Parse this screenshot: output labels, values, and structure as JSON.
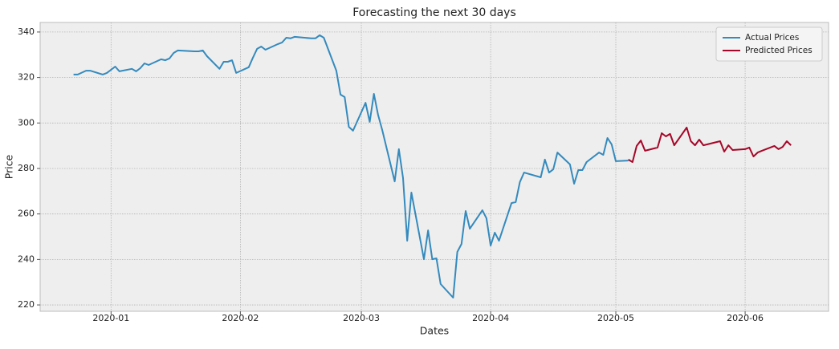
{
  "chart_data": {
    "type": "line",
    "title": "Forecasting the next 30 days",
    "x_label": "Dates",
    "y_label": "Price",
    "xlim": [
      "2019-12-15",
      "2020-06-21"
    ],
    "xticks": [
      "2020-01",
      "2020-02",
      "2020-03",
      "2020-04",
      "2020-05",
      "2020-06"
    ],
    "ylim": [
      217.2,
      344.2
    ],
    "yticks": [
      220,
      240,
      260,
      280,
      300,
      320,
      340
    ],
    "grid": true,
    "legend": "upper right",
    "series": [
      {
        "name": "Actual Prices",
        "color": "#348abd",
        "x": [
          "2019-12-23",
          "2019-12-24",
          "2019-12-26",
          "2019-12-27",
          "2019-12-30",
          "2019-12-31",
          "2020-01-02",
          "2020-01-03",
          "2020-01-06",
          "2020-01-07",
          "2020-01-08",
          "2020-01-09",
          "2020-01-10",
          "2020-01-13",
          "2020-01-14",
          "2020-01-15",
          "2020-01-16",
          "2020-01-17",
          "2020-01-21",
          "2020-01-22",
          "2020-01-23",
          "2020-01-24",
          "2020-01-27",
          "2020-01-28",
          "2020-01-29",
          "2020-01-30",
          "2020-01-31",
          "2020-02-03",
          "2020-02-04",
          "2020-02-05",
          "2020-02-06",
          "2020-02-07",
          "2020-02-10",
          "2020-02-11",
          "2020-02-12",
          "2020-02-13",
          "2020-02-14",
          "2020-02-18",
          "2020-02-19",
          "2020-02-20",
          "2020-02-21",
          "2020-02-24",
          "2020-02-25",
          "2020-02-26",
          "2020-02-27",
          "2020-02-28",
          "2020-03-02",
          "2020-03-03",
          "2020-03-04",
          "2020-03-05",
          "2020-03-06",
          "2020-03-09",
          "2020-03-10",
          "2020-03-11",
          "2020-03-12",
          "2020-03-13",
          "2020-03-16",
          "2020-03-17",
          "2020-03-18",
          "2020-03-19",
          "2020-03-20",
          "2020-03-23",
          "2020-03-24",
          "2020-03-25",
          "2020-03-26",
          "2020-03-27",
          "2020-03-30",
          "2020-03-31",
          "2020-04-01",
          "2020-04-02",
          "2020-04-03",
          "2020-04-06",
          "2020-04-07",
          "2020-04-08",
          "2020-04-09",
          "2020-04-13",
          "2020-04-14",
          "2020-04-15",
          "2020-04-16",
          "2020-04-17",
          "2020-04-20",
          "2020-04-21",
          "2020-04-22",
          "2020-04-23",
          "2020-04-24",
          "2020-04-27",
          "2020-04-28",
          "2020-04-29",
          "2020-04-30",
          "2020-05-01",
          "2020-05-04"
        ],
        "values": [
          321.3,
          321.3,
          323,
          323,
          321.3,
          322,
          324.8,
          322.7,
          323.8,
          322.7,
          324.1,
          326.2,
          325.5,
          328,
          327.6,
          328.4,
          330.8,
          331.9,
          331.5,
          331.5,
          331.9,
          329.4,
          323.8,
          326.9,
          326.9,
          327.6,
          322,
          324.5,
          328.7,
          332.6,
          333.6,
          332.2,
          334.7,
          335.4,
          337.5,
          337.2,
          337.9,
          337.2,
          337.2,
          338.6,
          337.5,
          323,
          312.5,
          311.4,
          298.3,
          296.6,
          308.9,
          300.5,
          312.8,
          303.6,
          296.9,
          274.3,
          288.5,
          275.8,
          248.2,
          269.4,
          240.1,
          252.8,
          240.1,
          240.5,
          229.2,
          223.2,
          243.3,
          246.8,
          261.3,
          253.5,
          261.6,
          258.1,
          246.1,
          251.8,
          248.2,
          264.8,
          265.2,
          274,
          278.2,
          276.1,
          283.9,
          278.2,
          279.6,
          287,
          281.8,
          273.3,
          279.3,
          279.3,
          282.8,
          287,
          286,
          293.4,
          290.6,
          283.2,
          283.5
        ]
      },
      {
        "name": "Predicted Prices",
        "color": "#a60628",
        "x": [
          "2020-05-04",
          "2020-05-05",
          "2020-05-06",
          "2020-05-07",
          "2020-05-08",
          "2020-05-11",
          "2020-05-12",
          "2020-05-13",
          "2020-05-14",
          "2020-05-15",
          "2020-05-18",
          "2020-05-19",
          "2020-05-20",
          "2020-05-21",
          "2020-05-22",
          "2020-05-26",
          "2020-05-27",
          "2020-05-28",
          "2020-05-29",
          "2020-06-01",
          "2020-06-02",
          "2020-06-03",
          "2020-06-04",
          "2020-06-05",
          "2020-06-08",
          "2020-06-09",
          "2020-06-10",
          "2020-06-11",
          "2020-06-12"
        ],
        "values": [
          283.9,
          282.8,
          289.9,
          292.3,
          287.8,
          289.2,
          295.5,
          294.1,
          295.2,
          290.2,
          298,
          292,
          290.2,
          292.7,
          290.2,
          292,
          287.4,
          290.2,
          288.1,
          288.5,
          289.2,
          285.3,
          287,
          287.8,
          289.9,
          288.5,
          289.5,
          292,
          290.2
        ]
      }
    ]
  }
}
